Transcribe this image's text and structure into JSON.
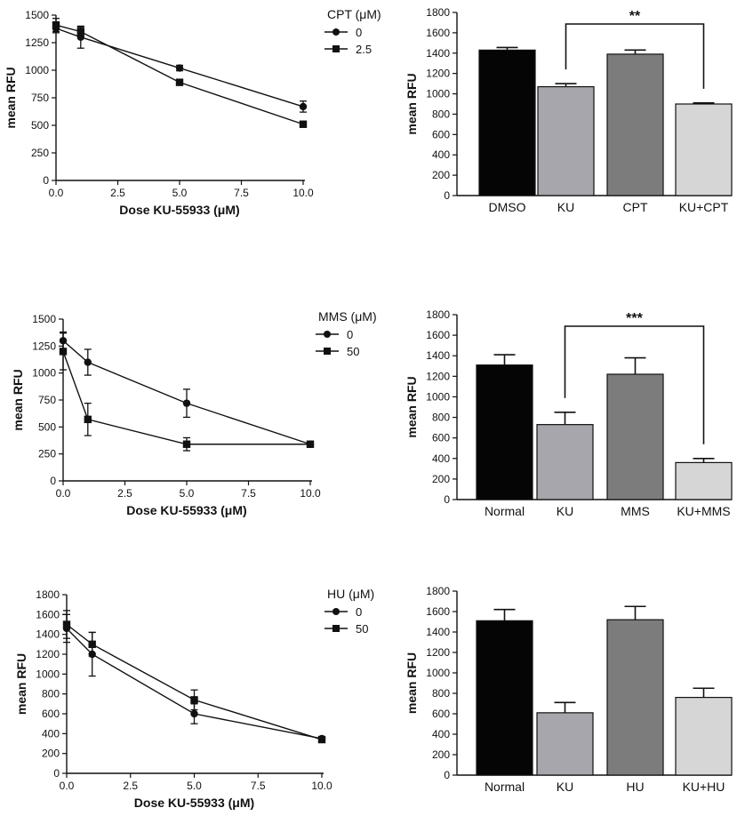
{
  "chart_data": [
    {
      "type": "line",
      "id": "cpt-line",
      "xlabel": "Dose KU-55933 (μM)",
      "ylabel": "mean RFU",
      "xlim": [
        0,
        10
      ],
      "ylim": [
        0,
        1500
      ],
      "xticks": [
        0,
        2.5,
        5,
        7.5,
        10
      ],
      "yticks": [
        0,
        250,
        500,
        750,
        1000,
        1250,
        1500
      ],
      "tick_labels_x": [
        "0.0",
        "2.5",
        "5.0",
        "7.5",
        "10.0"
      ],
      "tick_labels_y": [
        "0",
        "250",
        "500",
        "750",
        "1000",
        "1250",
        "1500"
      ],
      "legend": {
        "title": "CPT (μM)",
        "placement": "top-right outside"
      },
      "series": [
        {
          "name": "0",
          "marker": "circle",
          "x": [
            0,
            1,
            5,
            10
          ],
          "y": [
            1380,
            1300,
            1020,
            670
          ],
          "err": [
            40,
            100,
            25,
            50
          ]
        },
        {
          "name": "2.5",
          "marker": "square",
          "x": [
            0,
            1,
            5,
            10
          ],
          "y": [
            1410,
            1350,
            890,
            510
          ],
          "err": [
            60,
            40,
            15,
            10
          ]
        }
      ]
    },
    {
      "type": "bar",
      "id": "cpt-bar",
      "ylabel": "mean RFU",
      "ylim": [
        0,
        1800
      ],
      "yticks": [
        0,
        200,
        400,
        600,
        800,
        1000,
        1200,
        1400,
        1600,
        1800
      ],
      "tick_labels_y": [
        "0",
        "200",
        "400",
        "600",
        "800",
        "1000",
        "1200",
        "1400",
        "1600",
        "1800"
      ],
      "categories": [
        "DMSO",
        "KU",
        "CPT",
        "KU+CPT"
      ],
      "values": [
        1430,
        1070,
        1390,
        900
      ],
      "err": [
        25,
        30,
        40,
        10
      ],
      "colors": [
        "#050505",
        "#a6a6ac",
        "#7c7c7c",
        "#d6d6d6"
      ],
      "significance": {
        "from": 1,
        "to": 3,
        "label": "**"
      }
    },
    {
      "type": "line",
      "id": "mms-line",
      "xlabel": "Dose KU-55933 (μM)",
      "ylabel": "mean RFU",
      "xlim": [
        0,
        10
      ],
      "ylim": [
        0,
        1500
      ],
      "xticks": [
        0,
        2.5,
        5,
        7.5,
        10
      ],
      "yticks": [
        0,
        250,
        500,
        750,
        1000,
        1250,
        1500
      ],
      "tick_labels_x": [
        "0.0",
        "2.5",
        "5.0",
        "7.5",
        "10.0"
      ],
      "tick_labels_y": [
        "0",
        "250",
        "500",
        "750",
        "1000",
        "1250",
        "1500"
      ],
      "legend": {
        "title": "MMS (μM)",
        "placement": "top-right outside"
      },
      "series": [
        {
          "name": "0",
          "marker": "circle",
          "x": [
            0,
            1,
            5,
            10
          ],
          "y": [
            1300,
            1100,
            720,
            340
          ],
          "err": [
            80,
            120,
            130,
            20
          ]
        },
        {
          "name": "50",
          "marker": "square",
          "x": [
            0,
            1,
            5,
            10
          ],
          "y": [
            1200,
            570,
            340,
            340
          ],
          "err": [
            170,
            150,
            60,
            20
          ]
        }
      ]
    },
    {
      "type": "bar",
      "id": "mms-bar",
      "ylabel": "mean RFU",
      "ylim": [
        0,
        1800
      ],
      "yticks": [
        0,
        200,
        400,
        600,
        800,
        1000,
        1200,
        1400,
        1600,
        1800
      ],
      "tick_labels_y": [
        "0",
        "200",
        "400",
        "600",
        "800",
        "1000",
        "1200",
        "1400",
        "1600",
        "1800"
      ],
      "categories": [
        "Normal",
        "KU",
        "MMS",
        "KU+MMS"
      ],
      "values": [
        1310,
        730,
        1220,
        360
      ],
      "err": [
        100,
        120,
        160,
        40
      ],
      "colors": [
        "#050505",
        "#a6a6ac",
        "#7c7c7c",
        "#d6d6d6"
      ],
      "significance": {
        "from": 1,
        "to": 3,
        "label": "***"
      }
    },
    {
      "type": "line",
      "id": "hu-line",
      "xlabel": "Dose KU-55933 (μM)",
      "ylabel": "mean RFU",
      "xlim": [
        0,
        10
      ],
      "ylim": [
        0,
        1800
      ],
      "xticks": [
        0,
        2.5,
        5,
        7.5,
        10
      ],
      "yticks": [
        0,
        200,
        400,
        600,
        800,
        1000,
        1200,
        1400,
        1600,
        1800
      ],
      "tick_labels_x": [
        "0.0",
        "2.5",
        "5.0",
        "7.5",
        "10.0"
      ],
      "tick_labels_y": [
        "0",
        "200",
        "400",
        "600",
        "800",
        "1000",
        "1200",
        "1400",
        "1600",
        "1800"
      ],
      "legend": {
        "title": "HU (μM)",
        "placement": "top-right outside"
      },
      "series": [
        {
          "name": "0",
          "marker": "circle",
          "x": [
            0,
            1,
            5,
            10
          ],
          "y": [
            1460,
            1200,
            600,
            350
          ],
          "err": [
            140,
            220,
            100,
            20
          ]
        },
        {
          "name": "50",
          "marker": "square",
          "x": [
            0,
            1,
            5,
            10
          ],
          "y": [
            1500,
            1300,
            740,
            340
          ],
          "err": [
            140,
            120,
            100,
            20
          ]
        }
      ]
    },
    {
      "type": "bar",
      "id": "hu-bar",
      "ylabel": "mean RFU",
      "ylim": [
        0,
        1800
      ],
      "yticks": [
        0,
        200,
        400,
        600,
        800,
        1000,
        1200,
        1400,
        1600,
        1800
      ],
      "tick_labels_y": [
        "0",
        "200",
        "400",
        "600",
        "800",
        "1000",
        "1200",
        "1400",
        "1600",
        "1800"
      ],
      "categories": [
        "Normal",
        "KU",
        "HU",
        "KU+HU"
      ],
      "values": [
        1510,
        610,
        1520,
        760
      ],
      "err": [
        110,
        100,
        130,
        90
      ],
      "colors": [
        "#050505",
        "#a6a6ac",
        "#7c7c7c",
        "#d6d6d6"
      ]
    }
  ]
}
